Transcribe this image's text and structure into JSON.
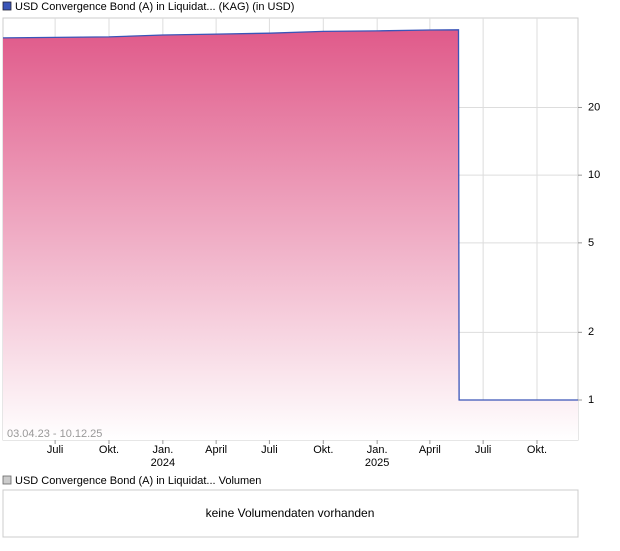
{
  "chart_data": {
    "type": "area",
    "title": "USD Convergence Bond (A) in Liquidat... (KAG) (in USD)",
    "date_range": "03.04.23 - 10.12.25",
    "x": [
      "2023-04-03",
      "2023-07-01",
      "2023-10-01",
      "2024-01-01",
      "2024-04-01",
      "2024-07-01",
      "2024-10-01",
      "2025-01-01",
      "2025-04-01",
      "2025-05-20",
      "2025-05-21",
      "2025-12-10"
    ],
    "series": [
      {
        "name": "USD Convergence Bond (A) in Liquidat... (KAG) (in USD)",
        "color": "#3a55b8",
        "values": [
          40.8,
          41.0,
          41.2,
          42.0,
          42.4,
          42.8,
          43.6,
          43.8,
          44.2,
          44.3,
          1.0,
          1.0
        ]
      }
    ],
    "xlim": [
      "2023-04-03",
      "2025-12-10"
    ],
    "xticks": [
      {
        "value": "2023-07-01",
        "label": "Juli"
      },
      {
        "value": "2023-10-01",
        "label": "Okt."
      },
      {
        "value": "2024-01-01",
        "label": "Jan.",
        "year": "2024"
      },
      {
        "value": "2024-04-01",
        "label": "April"
      },
      {
        "value": "2024-07-01",
        "label": "Juli"
      },
      {
        "value": "2024-10-01",
        "label": "Okt."
      },
      {
        "value": "2025-01-01",
        "label": "Jan.",
        "year": "2025"
      },
      {
        "value": "2025-04-01",
        "label": "April"
      },
      {
        "value": "2025-07-01",
        "label": "Juli"
      },
      {
        "value": "2025-10-01",
        "label": "Okt."
      }
    ],
    "ylim": [
      0.664,
      50
    ],
    "yticks": [
      1,
      2,
      5,
      10,
      20
    ],
    "log_scale": true,
    "grid": true,
    "fill_top": "#e05a8a",
    "fill_bottom": "#ffffff",
    "volume": {
      "title": "USD Convergence Bond (A) in Liquidat... Volumen",
      "message": "keine Volumendaten vorhanden"
    }
  }
}
